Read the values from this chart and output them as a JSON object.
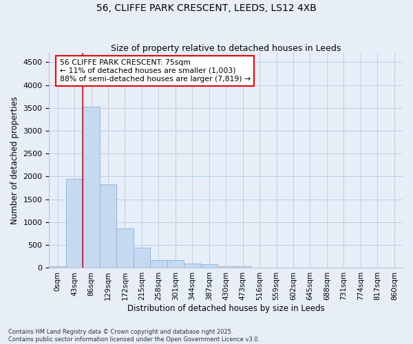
{
  "title_line1": "56, CLIFFE PARK CRESCENT, LEEDS, LS12 4XB",
  "title_line2": "Size of property relative to detached houses in Leeds",
  "xlabel": "Distribution of detached houses by size in Leeds",
  "ylabel": "Number of detached properties",
  "bar_labels": [
    "0sqm",
    "43sqm",
    "86sqm",
    "129sqm",
    "172sqm",
    "215sqm",
    "258sqm",
    "301sqm",
    "344sqm",
    "387sqm",
    "430sqm",
    "473sqm",
    "516sqm",
    "559sqm",
    "602sqm",
    "645sqm",
    "688sqm",
    "731sqm",
    "774sqm",
    "817sqm",
    "860sqm"
  ],
  "bar_values": [
    30,
    1950,
    3530,
    1820,
    860,
    450,
    175,
    170,
    90,
    80,
    40,
    30,
    5,
    3,
    2,
    2,
    1,
    1,
    1,
    1,
    1
  ],
  "bar_color": "#c5d9f0",
  "bar_edge_color": "#8ab4d8",
  "vline_x": 1.5,
  "vline_color": "red",
  "annotation_title": "56 CLIFFE PARK CRESCENT: 75sqm",
  "annotation_line2": "← 11% of detached houses are smaller (1,003)",
  "annotation_line3": "88% of semi-detached houses are larger (7,819) →",
  "annotation_box_color": "red",
  "annotation_fill": "white",
  "ylim": [
    0,
    4700
  ],
  "yticks": [
    0,
    500,
    1000,
    1500,
    2000,
    2500,
    3000,
    3500,
    4000,
    4500
  ],
  "background_color": "#e8eef8",
  "footer_line1": "Contains HM Land Registry data © Crown copyright and database right 2025.",
  "footer_line2": "Contains public sector information licensed under the Open Government Licence v3.0.",
  "grid_color": "#b8c8e0"
}
